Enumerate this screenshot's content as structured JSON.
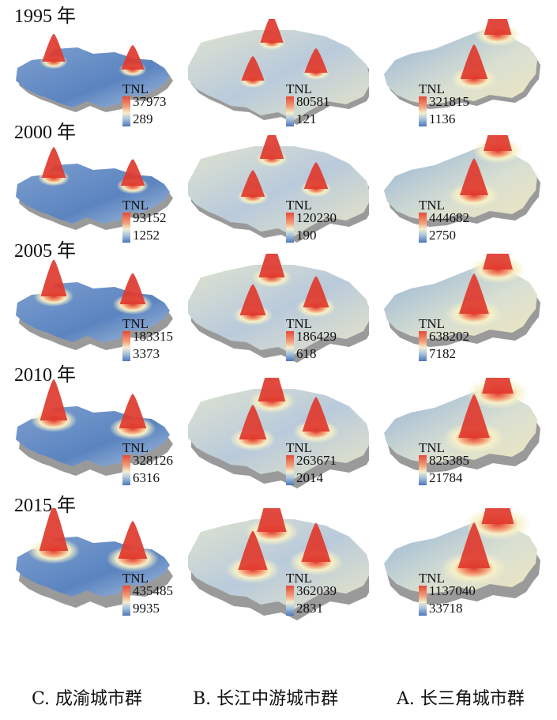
{
  "legend_title": "TNL",
  "years": [
    {
      "label": "1995 年",
      "C": {
        "max": "37973",
        "min": "289"
      },
      "B": {
        "max": "80581",
        "min": "121"
      },
      "A": {
        "max": "321815",
        "min": "1136"
      }
    },
    {
      "label": "2000 年",
      "C": {
        "max": "93152",
        "min": "1252"
      },
      "B": {
        "max": "120230",
        "min": "190"
      },
      "A": {
        "max": "444682",
        "min": "2750"
      }
    },
    {
      "label": "2005 年",
      "C": {
        "max": "183315",
        "min": "3373"
      },
      "B": {
        "max": "186429",
        "min": "618"
      },
      "A": {
        "max": "638202",
        "min": "7182"
      }
    },
    {
      "label": "2010 年",
      "C": {
        "max": "328126",
        "min": "6316"
      },
      "B": {
        "max": "263671",
        "min": "2014"
      },
      "A": {
        "max": "825385",
        "min": "21784"
      }
    },
    {
      "label": "2015 年",
      "C": {
        "max": "435485",
        "min": "9935"
      },
      "B": {
        "max": "362039",
        "min": "2831"
      },
      "A": {
        "max": "1137040",
        "min": "33718"
      }
    }
  ],
  "regions": [
    {
      "key": "C",
      "caption": "C. 成渝城市群"
    },
    {
      "key": "B",
      "caption": "B. 长江中游城市群"
    },
    {
      "key": "A",
      "caption": "A. 长三角城市群"
    }
  ],
  "colors": {
    "high": "#e03a2e",
    "mid": "#f6f0c8",
    "low": "#4f79b8",
    "shadow": "#9a9a9a"
  }
}
